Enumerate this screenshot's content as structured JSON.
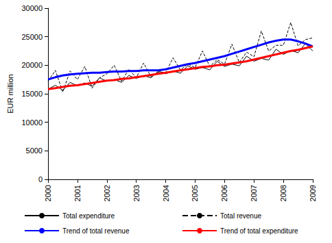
{
  "chart_data": {
    "type": "line",
    "y_label": "EUR million",
    "categories": [
      "2000",
      null,
      null,
      null,
      "2001",
      null,
      null,
      null,
      "2002",
      null,
      null,
      null,
      "2003",
      null,
      null,
      null,
      "2004",
      null,
      null,
      null,
      "2005",
      null,
      null,
      null,
      "2006",
      null,
      null,
      null,
      "2007",
      null,
      null,
      null,
      "2008",
      null,
      null,
      null,
      "2009"
    ],
    "series": [
      {
        "name": "Total expenditure",
        "color": "#000000",
        "line_style": "solid",
        "values": [
          15800,
          16500,
          15600,
          17000,
          16400,
          16900,
          16300,
          17800,
          17200,
          17500,
          17000,
          18200,
          17700,
          18200,
          17800,
          19000,
          18500,
          19000,
          18600,
          19900,
          19300,
          19600,
          19200,
          20700,
          19800,
          20200,
          19900,
          21600,
          20700,
          21200,
          20900,
          22800,
          21900,
          22600,
          22200,
          23800,
          22500
        ]
      },
      {
        "name": "Total revenue",
        "color": "#000000",
        "line_style": "dashed",
        "values": [
          17200,
          19100,
          15300,
          19000,
          17500,
          19800,
          16000,
          17800,
          18500,
          20000,
          17200,
          19300,
          17800,
          20400,
          18000,
          18800,
          18700,
          21300,
          19200,
          20200,
          19600,
          22500,
          19800,
          21000,
          20200,
          23700,
          20500,
          22300,
          21500,
          26000,
          22500,
          23500,
          23500,
          27500,
          23400,
          24500,
          24800
        ]
      },
      {
        "name": "Trend of total revenue",
        "color": "#0000ff",
        "line_style": "solid",
        "values": [
          17500,
          17900,
          18200,
          18400,
          18500,
          18600,
          18700,
          18700,
          18800,
          18900,
          18900,
          19000,
          19000,
          19100,
          19100,
          19100,
          19300,
          19600,
          19900,
          20200,
          20400,
          20700,
          21000,
          21300,
          21600,
          22000,
          22400,
          22800,
          23200,
          23600,
          24000,
          24300,
          24500,
          24500,
          24200,
          23800,
          23300
        ]
      },
      {
        "name": "Trend of total expenditure",
        "color": "#ff0000",
        "line_style": "solid",
        "values": [
          15800,
          16000,
          16200,
          16400,
          16500,
          16700,
          16900,
          17100,
          17300,
          17400,
          17600,
          17700,
          17900,
          18100,
          18300,
          18500,
          18700,
          18900,
          19100,
          19300,
          19500,
          19700,
          19800,
          20000,
          20100,
          20300,
          20500,
          20700,
          21000,
          21300,
          21600,
          21900,
          22200,
          22500,
          22700,
          23000,
          23300
        ]
      }
    ],
    "ylim": [
      0,
      30000
    ],
    "yticks": [
      0,
      5000,
      10000,
      15000,
      20000,
      25000,
      30000
    ],
    "grid": false,
    "legend": "bottom"
  }
}
